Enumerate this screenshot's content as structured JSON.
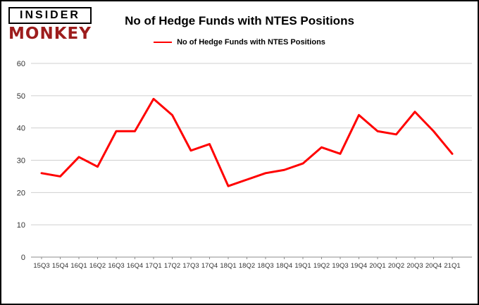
{
  "logo": {
    "line1": "INSIDER",
    "line2": "MONKEY"
  },
  "header": {
    "title": "No of Hedge Funds with NTES Positions"
  },
  "legend": {
    "label": "No of Hedge Funds with NTES Positions"
  },
  "colors": {
    "line": "#ff0000",
    "brand": "#9d1d1d",
    "grid": "#cfcfcf",
    "axis": "#8c8c8c",
    "tick_text": "#333333"
  },
  "chart_data": {
    "type": "line",
    "title": "No of Hedge Funds with NTES Positions",
    "categories": [
      "15Q3",
      "15Q4",
      "16Q1",
      "16Q2",
      "16Q3",
      "16Q4",
      "17Q1",
      "17Q2",
      "17Q3",
      "17Q4",
      "18Q1",
      "18Q2",
      "18Q3",
      "18Q4",
      "19Q1",
      "19Q2",
      "19Q3",
      "19Q4",
      "20Q1",
      "20Q2",
      "20Q3",
      "20Q4",
      "21Q1"
    ],
    "values": [
      26,
      25,
      31,
      28,
      39,
      39,
      49,
      44,
      33,
      35,
      22,
      24,
      26,
      27,
      29,
      34,
      32,
      44,
      39,
      38,
      45,
      39,
      32
    ],
    "xlabel": "",
    "ylabel": "",
    "ylim": [
      0,
      60
    ],
    "yticks": [
      0,
      10,
      20,
      30,
      40,
      50,
      60
    ],
    "grid": true,
    "legend_position": "top",
    "line_color": "#ff0000"
  }
}
